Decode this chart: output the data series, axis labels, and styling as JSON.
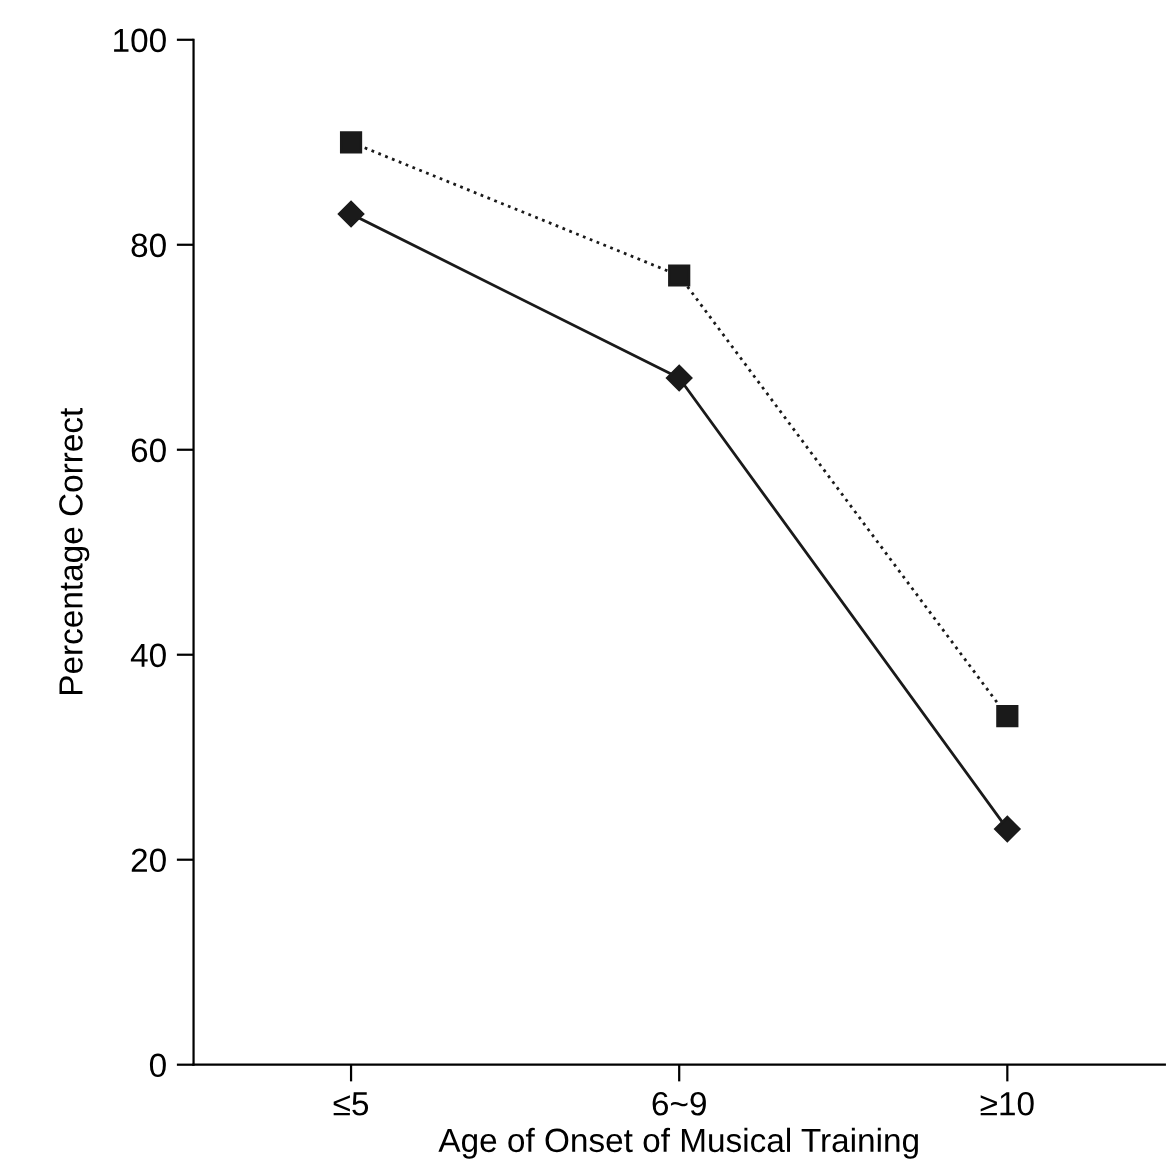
{
  "chart_data": {
    "type": "line",
    "xlabel": "Age of Onset of Musical Training",
    "ylabel": "Percentage Correct",
    "categories": [
      "≤5",
      "6~9",
      "≥10"
    ],
    "series": [
      {
        "color": "#1a1a1a",
        "values": [
          90,
          77,
          34
        ],
        "marker": "square",
        "line_style": "dotted"
      },
      {
        "color": "#1a1a1a",
        "values": [
          83,
          67,
          23
        ],
        "marker": "diamond",
        "line_style": "solid"
      }
    ],
    "ylim": [
      0,
      100
    ],
    "yticks": [
      0,
      20,
      40,
      60,
      80,
      100
    ],
    "grid": false
  }
}
